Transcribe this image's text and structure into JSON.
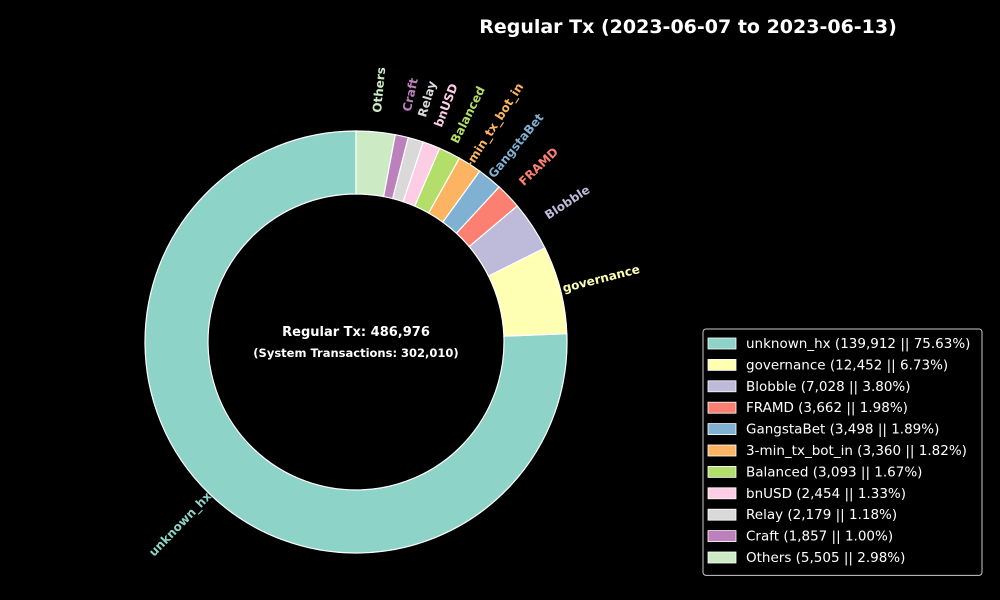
{
  "chart_data": {
    "type": "pie",
    "variant": "donut",
    "title": "Regular Tx (2023-06-07 to 2023-06-13)",
    "center_text": "Regular Tx: 486,976",
    "center_subtext": "(System Transactions: 302,010)",
    "background": "#000000",
    "legend_position": "lower-right",
    "slices": [
      {
        "label": "unknown_hx",
        "value": 139912,
        "percent": "75.63%",
        "color": "#8dd3c7",
        "legend": "unknown_hx (139,912 || 75.63%)"
      },
      {
        "label": "governance",
        "value": 12452,
        "percent": "6.73%",
        "color": "#ffffb3",
        "legend": "governance (12,452 || 6.73%)"
      },
      {
        "label": "Blobble",
        "value": 7028,
        "percent": "3.80%",
        "color": "#bebada",
        "legend": "Blobble (7,028 || 3.80%)"
      },
      {
        "label": "FRAMD",
        "value": 3662,
        "percent": "1.98%",
        "color": "#fb8072",
        "legend": "FRAMD (3,662 || 1.98%)"
      },
      {
        "label": "GangstaBet",
        "value": 3498,
        "percent": "1.89%",
        "color": "#80b1d3",
        "legend": "GangstaBet (3,498 || 1.89%)"
      },
      {
        "label": "3-min_tx_bot_in",
        "value": 3360,
        "percent": "1.82%",
        "color": "#fdb462",
        "legend": "3-min_tx_bot_in (3,360 || 1.82%)"
      },
      {
        "label": "Balanced",
        "value": 3093,
        "percent": "1.67%",
        "color": "#b3de69",
        "legend": "Balanced (3,093 || 1.67%)"
      },
      {
        "label": "bnUSD",
        "value": 2454,
        "percent": "1.33%",
        "color": "#fccde5",
        "legend": "bnUSD (2,454 || 1.33%)"
      },
      {
        "label": "Relay",
        "value": 2179,
        "percent": "1.18%",
        "color": "#d9d9d9",
        "legend": "Relay (2,179 || 1.18%)"
      },
      {
        "label": "Craft",
        "value": 1857,
        "percent": "1.00%",
        "color": "#bc80bd",
        "legend": "Craft (1,857 || 1.00%)"
      },
      {
        "label": "Others",
        "value": 5505,
        "percent": "2.98%",
        "color": "#ccebc5",
        "legend": "Others (5,505 || 2.98%)"
      }
    ]
  }
}
